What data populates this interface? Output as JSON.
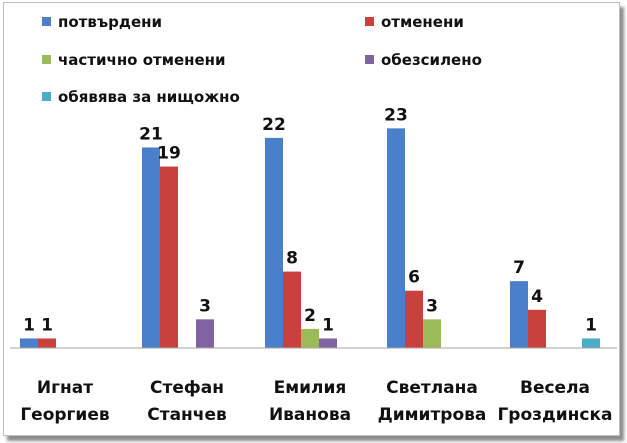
{
  "chart_data": {
    "type": "bar",
    "categories": [
      [
        "Игнат",
        "Георгиев"
      ],
      [
        "Стефан",
        "Станчев"
      ],
      [
        "Емилия",
        "Иванова"
      ],
      [
        "Светлана",
        "Димитрова"
      ],
      [
        "Весела",
        "Гроздинска"
      ]
    ],
    "series": [
      {
        "name": "потвърдени",
        "color": "#4a7fc9",
        "values": [
          1,
          21,
          22,
          23,
          7
        ]
      },
      {
        "name": "отменени",
        "color": "#c8413d",
        "values": [
          1,
          19,
          8,
          6,
          4
        ]
      },
      {
        "name": "частично отменени",
        "color": "#9bbb59",
        "values": [
          null,
          null,
          2,
          3,
          null
        ]
      },
      {
        "name": "обезсилено",
        "color": "#8064a2",
        "values": [
          null,
          3,
          1,
          null,
          null
        ]
      },
      {
        "name": "обявява за нищожно",
        "color": "#4bacc6",
        "values": [
          null,
          null,
          null,
          null,
          1
        ]
      }
    ],
    "ylim": [
      0,
      25
    ],
    "grid": false,
    "legend_position": "top"
  }
}
